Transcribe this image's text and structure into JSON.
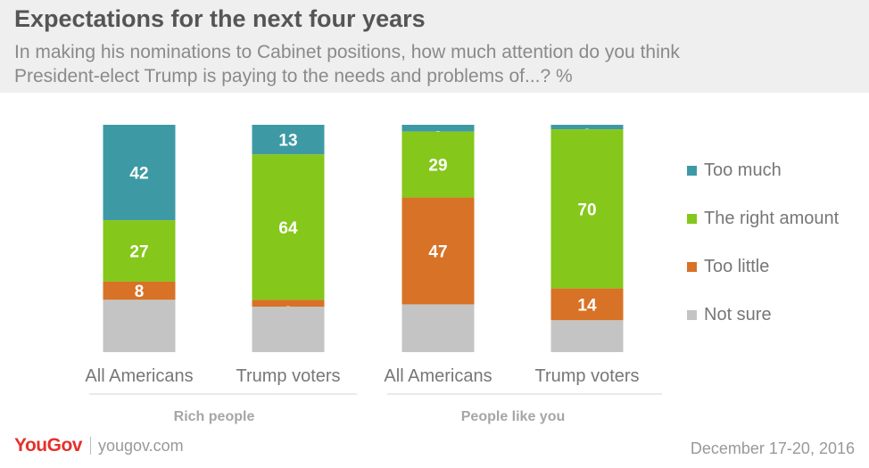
{
  "title": "Expectations for the next four years",
  "subtitle_lines": [
    "In making his nominations to Cabinet positions, how much attention do you think",
    "President-elect Trump is paying to the needs and problems of...? %"
  ],
  "footer": {
    "logo": "YouGov",
    "site": "yougov.com",
    "date": "December 17-20, 2016"
  },
  "colors": {
    "too_much": "#3d9aa4",
    "right_amount": "#85c71a",
    "too_little": "#d87226",
    "not_sure": "#c4c4c4"
  },
  "chart_data": {
    "type": "bar",
    "stacked": true,
    "y_unit": "%",
    "groups": [
      "Rich people",
      "People like you"
    ],
    "categories": [
      "All Americans",
      "Trump voters",
      "All Americans",
      "Trump voters"
    ],
    "category_group": [
      0,
      0,
      1,
      1
    ],
    "series": [
      {
        "name": "Too much",
        "values": [
          42,
          13,
          3,
          2
        ],
        "color": "#3d9aa4"
      },
      {
        "name": "The right amount",
        "values": [
          27,
          64,
          29,
          70
        ],
        "color": "#85c71a"
      },
      {
        "name": "Too little",
        "values": [
          8,
          3,
          47,
          14
        ],
        "color": "#d87226"
      },
      {
        "name": "Not sure",
        "values": [
          23,
          20,
          21,
          14
        ],
        "color": "#c4c4c4"
      }
    ],
    "labeled_series": [
      0,
      1,
      2
    ],
    "legend_position": "right",
    "grid": false
  }
}
